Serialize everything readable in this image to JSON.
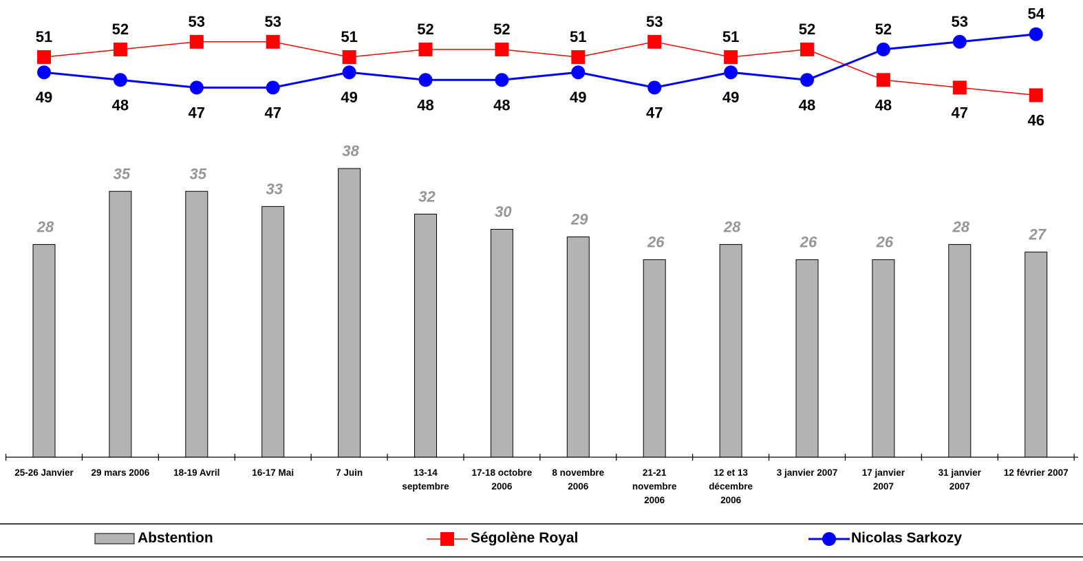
{
  "chart_data": {
    "type": "bar+line",
    "categories": [
      "25-26 Janvier",
      "29 mars 2006",
      "18-19 Avril",
      "16-17 Mai",
      "7 Juin",
      "13-14 septembre",
      "17-18 octobre 2006",
      "8 novembre 2006",
      "21-21 novembre 2006",
      "12 et 13 décembre 2006",
      "3 janvier 2007",
      "17 janvier 2007",
      "31 janvier 2007",
      "12 février 2007"
    ],
    "category_lines": [
      [
        "25-26 Janvier"
      ],
      [
        "29 mars 2006"
      ],
      [
        "18-19 Avril"
      ],
      [
        "16-17 Mai"
      ],
      [
        "7 Juin"
      ],
      [
        "13-14",
        "septembre"
      ],
      [
        "17-18 octobre",
        "2006"
      ],
      [
        "8 novembre",
        "2006"
      ],
      [
        "21-21",
        "novembre",
        "2006"
      ],
      [
        "12 et 13",
        "décembre",
        "2006"
      ],
      [
        "3 janvier 2007"
      ],
      [
        "17 janvier",
        "2007"
      ],
      [
        "31 janvier",
        "2007"
      ],
      [
        "12 février 2007"
      ]
    ],
    "series": [
      {
        "name": "Abstention",
        "kind": "bar",
        "color": "#b3b3b3",
        "values": [
          28,
          35,
          35,
          33,
          38,
          32,
          30,
          29,
          26,
          28,
          26,
          26,
          28,
          27
        ]
      },
      {
        "name": "Ségolène Royal",
        "kind": "line",
        "marker": "square",
        "color": "#ff0000",
        "values": [
          51,
          52,
          53,
          53,
          51,
          52,
          52,
          51,
          53,
          51,
          52,
          48,
          47,
          46
        ]
      },
      {
        "name": "Nicolas Sarkozy",
        "kind": "line",
        "marker": "circle",
        "color": "#0000ff",
        "values": [
          49,
          48,
          47,
          47,
          49,
          48,
          48,
          49,
          47,
          49,
          48,
          52,
          53,
          54
        ]
      }
    ],
    "legend": {
      "position": "bottom",
      "labels": [
        "Abstention",
        "Ségolène Royal",
        "Nicolas Sarkozy"
      ]
    },
    "grid": false
  }
}
